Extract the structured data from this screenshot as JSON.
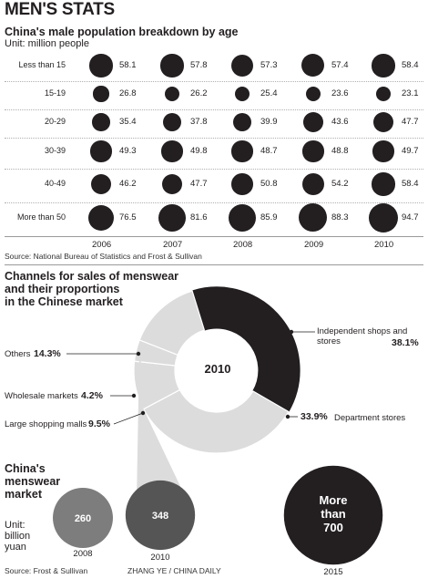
{
  "header": {
    "title": "MEN'S STATS"
  },
  "chart_data": [
    {
      "type": "bubble-table",
      "title": "China's male population breakdown by age",
      "unit": "Unit: million people",
      "years": [
        "2006",
        "2007",
        "2008",
        "2009",
        "2010"
      ],
      "rows": [
        {
          "label": "Less than 15",
          "values": [
            58.1,
            57.8,
            57.3,
            57.4,
            58.4
          ]
        },
        {
          "label": "15-19",
          "values": [
            26.8,
            26.2,
            25.4,
            23.6,
            23.1
          ]
        },
        {
          "label": "20-29",
          "values": [
            35.4,
            37.8,
            39.9,
            43.6,
            47.7
          ]
        },
        {
          "label": "30-39",
          "values": [
            49.3,
            49.8,
            48.7,
            48.8,
            49.7
          ]
        },
        {
          "label": "40-49",
          "values": [
            46.2,
            47.7,
            50.8,
            54.2,
            58.4
          ]
        },
        {
          "label": "More than 50",
          "values": [
            76.5,
            81.6,
            85.9,
            88.3,
            94.7
          ]
        }
      ],
      "source": "Source: National Bureau of Statistics and Frost & Sullivan",
      "color": "#231f20"
    },
    {
      "type": "pie",
      "title": "Channels for sales of menswear and their proportions in the Chinese market",
      "title_lines": [
        "Channels for sales of menswear",
        "and their proportions",
        "in the Chinese market"
      ],
      "center_label": "2010",
      "slices": [
        {
          "label": "Independent shops and stores",
          "value": 38.1,
          "pct": "38.1%",
          "color": "#231f20"
        },
        {
          "label": "Department stores",
          "value": 33.9,
          "pct": "33.9%",
          "color": "#dcdcdc"
        },
        {
          "label": "Large shopping malls",
          "value": 9.5,
          "pct": "9.5%",
          "color": "#dcdcdc"
        },
        {
          "label": "Wholesale markets",
          "value": 4.2,
          "pct": "4.2%",
          "color": "#dcdcdc"
        },
        {
          "label": "Others",
          "value": 14.3,
          "pct": "14.3%",
          "color": "#dcdcdc"
        }
      ]
    },
    {
      "type": "bubble",
      "title": "China's menswear market",
      "title_lines": [
        "China's",
        "menswear",
        "market"
      ],
      "unit_lines": [
        "Unit:",
        "billion",
        "yuan"
      ],
      "points": [
        {
          "year": "2008",
          "value": 260,
          "label": "260",
          "color": "#7d7d7d"
        },
        {
          "year": "2010",
          "value": 348,
          "label": "348",
          "color": "#555555"
        },
        {
          "year": "2015",
          "value": 700,
          "label_lines": [
            "More",
            "than",
            "700"
          ],
          "color": "#231f20"
        }
      ],
      "source": "Source: Frost & Sullivan"
    }
  ],
  "credit": "ZHANG YE / CHINA DAILY"
}
